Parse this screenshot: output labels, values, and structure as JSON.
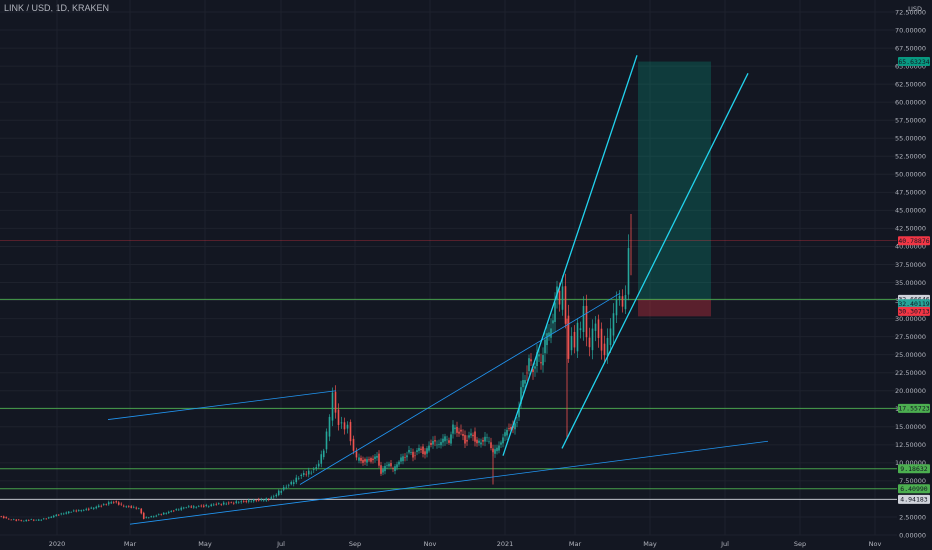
{
  "header": {
    "title": "LINK / USD, 1D, KRAKEN"
  },
  "chart_data": {
    "type": "candlestick",
    "symbol": "LINK / USD",
    "interval": "1D",
    "exchange": "KRAKEN",
    "currency_label": "USD",
    "y_axis": {
      "range": [
        0,
        72.5
      ],
      "ticks": [
        "72.50000",
        "70.00000",
        "67.50000",
        "65.00000",
        "62.50000",
        "60.00000",
        "57.50000",
        "55.00000",
        "52.50000",
        "50.00000",
        "47.50000",
        "45.00000",
        "42.50000",
        "40.00000",
        "37.50000",
        "35.00000",
        "32.50000",
        "30.00000",
        "27.50000",
        "25.00000",
        "22.50000",
        "20.00000",
        "17.50000",
        "15.00000",
        "12.50000",
        "10.00000",
        "7.50000",
        "5.00000",
        "2.50000",
        "0.00000"
      ]
    },
    "x_axis": {
      "ticks": [
        "2020",
        "Mar",
        "May",
        "Jul",
        "Sep",
        "Nov",
        "2021",
        "Mar",
        "May",
        "Jul",
        "Sep",
        "Nov"
      ]
    },
    "price_badges": [
      {
        "value": "65.63234",
        "y": 65.63,
        "color": "#089981"
      },
      {
        "value": "40.78876",
        "y": 40.79,
        "color": "#f23645"
      },
      {
        "value": "32.66646",
        "y": 32.67,
        "color": "#d1d4dc"
      },
      {
        "value": "32.40119",
        "y": 32.05,
        "color": "#26a69a"
      },
      {
        "value": "30.30713",
        "y": 31.0,
        "color": "#f23645"
      },
      {
        "value": "17.55723",
        "y": 17.56,
        "color": "#4caf50"
      },
      {
        "value": "9.18632",
        "y": 9.19,
        "color": "#4caf50"
      },
      {
        "value": "6.40990",
        "y": 6.41,
        "color": "#4caf50"
      },
      {
        "value": "4.94183",
        "y": 4.94,
        "color": "#d1d4dc"
      }
    ],
    "horizontal_levels": [
      {
        "y": 32.67,
        "color": "#4caf50"
      },
      {
        "y": 17.56,
        "color": "#4caf50"
      },
      {
        "y": 9.19,
        "color": "#4caf50"
      },
      {
        "y": 6.41,
        "color": "#4caf50"
      },
      {
        "y": 4.94,
        "color": "#d1d4dc"
      },
      {
        "y": 40.79,
        "color": "#f23645"
      }
    ],
    "price_path": [
      [
        0,
        2.6
      ],
      [
        5,
        2.4
      ],
      [
        10,
        2.2
      ],
      [
        15,
        2.1
      ],
      [
        20,
        2.0
      ],
      [
        25,
        2.0
      ],
      [
        30,
        2.1
      ],
      [
        35,
        2.05
      ],
      [
        40,
        2.1
      ],
      [
        45,
        2.2
      ],
      [
        50,
        2.4
      ],
      [
        55,
        2.7
      ],
      [
        60,
        2.8
      ],
      [
        65,
        3.0
      ],
      [
        70,
        3.2
      ],
      [
        75,
        3.3
      ],
      [
        80,
        3.4
      ],
      [
        85,
        3.5
      ],
      [
        90,
        3.6
      ],
      [
        95,
        3.8
      ],
      [
        100,
        4.0
      ],
      [
        105,
        4.2
      ],
      [
        110,
        4.5
      ],
      [
        115,
        4.6
      ],
      [
        120,
        4.3
      ],
      [
        125,
        4.0
      ],
      [
        130,
        3.9
      ],
      [
        135,
        3.8
      ],
      [
        140,
        3.7
      ],
      [
        145,
        2.3
      ],
      [
        150,
        2.5
      ],
      [
        155,
        2.6
      ],
      [
        160,
        2.8
      ],
      [
        165,
        3.0
      ],
      [
        170,
        3.2
      ],
      [
        175,
        3.4
      ],
      [
        180,
        3.6
      ],
      [
        185,
        3.8
      ],
      [
        190,
        3.9
      ],
      [
        195,
        3.9
      ],
      [
        200,
        4.0
      ],
      [
        205,
        4.0
      ],
      [
        210,
        4.1
      ],
      [
        215,
        4.2
      ],
      [
        220,
        4.3
      ],
      [
        225,
        4.4
      ],
      [
        230,
        4.4
      ],
      [
        235,
        4.5
      ],
      [
        240,
        4.6
      ],
      [
        245,
        4.6
      ],
      [
        250,
        4.7
      ],
      [
        255,
        4.8
      ],
      [
        260,
        4.8
      ],
      [
        265,
        4.9
      ],
      [
        270,
        5.0
      ],
      [
        275,
        5.3
      ],
      [
        280,
        6.0
      ],
      [
        285,
        6.5
      ],
      [
        290,
        7.0
      ],
      [
        295,
        7.5
      ],
      [
        300,
        8.0
      ],
      [
        305,
        8.5
      ],
      [
        310,
        8.7
      ],
      [
        315,
        9.0
      ],
      [
        320,
        10.0
      ],
      [
        325,
        12.0
      ],
      [
        328,
        14.0
      ],
      [
        331,
        16.0
      ],
      [
        334,
        19.5
      ],
      [
        337,
        17.0
      ],
      [
        340,
        15.5
      ],
      [
        343,
        16.0
      ],
      [
        346,
        15.0
      ],
      [
        349,
        15.5
      ],
      [
        352,
        13.0
      ],
      [
        355,
        11.5
      ],
      [
        358,
        10.5
      ],
      [
        362,
        10.5
      ],
      [
        366,
        10.0
      ],
      [
        370,
        10.5
      ],
      [
        374,
        10.3
      ],
      [
        378,
        11.0
      ],
      [
        382,
        8.5
      ],
      [
        386,
        9.5
      ],
      [
        390,
        10.0
      ],
      [
        394,
        9.0
      ],
      [
        398,
        10.0
      ],
      [
        402,
        10.5
      ],
      [
        406,
        11.0
      ],
      [
        410,
        11.5
      ],
      [
        414,
        11.0
      ],
      [
        418,
        11.5
      ],
      [
        422,
        12.0
      ],
      [
        426,
        11.0
      ],
      [
        430,
        12.5
      ],
      [
        434,
        13.0
      ],
      [
        438,
        12.5
      ],
      [
        442,
        13.0
      ],
      [
        446,
        13.5
      ],
      [
        450,
        13.0
      ],
      [
        454,
        15.0
      ],
      [
        458,
        14.5
      ],
      [
        462,
        14.0
      ],
      [
        466,
        13.0
      ],
      [
        470,
        13.5
      ],
      [
        474,
        14.0
      ],
      [
        478,
        12.5
      ],
      [
        482,
        13.0
      ],
      [
        486,
        13.5
      ],
      [
        490,
        13.0
      ],
      [
        494,
        11.5
      ],
      [
        498,
        12.0
      ],
      [
        502,
        13.0
      ],
      [
        506,
        14.0
      ],
      [
        510,
        15.0
      ],
      [
        514,
        14.5
      ],
      [
        518,
        16.0
      ],
      [
        522,
        20.0
      ],
      [
        526,
        22.0
      ],
      [
        530,
        24.0
      ],
      [
        534,
        23.0
      ],
      [
        538,
        25.0
      ],
      [
        542,
        24.0
      ],
      [
        546,
        27.0
      ],
      [
        550,
        28.0
      ],
      [
        554,
        30.0
      ],
      [
        558,
        34.0
      ],
      [
        561,
        32.0
      ],
      [
        564,
        35.0
      ],
      [
        567,
        30.0
      ],
      [
        570,
        25.0
      ],
      [
        573,
        28.0
      ],
      [
        576,
        26.0
      ],
      [
        579,
        29.0
      ],
      [
        582,
        28.0
      ],
      [
        585,
        31.0
      ],
      [
        588,
        27.0
      ],
      [
        591,
        26.0
      ],
      [
        594,
        29.0
      ],
      [
        597,
        30.0
      ],
      [
        600,
        28.0
      ],
      [
        603,
        26.0
      ],
      [
        606,
        25.0
      ],
      [
        609,
        27.0
      ],
      [
        612,
        28.0
      ],
      [
        615,
        30.0
      ],
      [
        618,
        32.0
      ],
      [
        621,
        33.0
      ],
      [
        624,
        32.0
      ],
      [
        627,
        34.0
      ],
      [
        630,
        40.79
      ]
    ],
    "drawings": {
      "trendlines": [
        {
          "from": [
            108,
            16.0
          ],
          "to": [
            336,
            20.0
          ],
          "color": "#2196f3"
        },
        {
          "from": [
            130,
            1.5
          ],
          "to": [
            768,
            13.0
          ],
          "color": "#2196f3"
        },
        {
          "from": [
            300,
            7.0
          ],
          "to": [
            620,
            33.5
          ],
          "color": "#2196f3"
        },
        {
          "from": [
            503,
            11.0
          ],
          "to": [
            637,
            66.5
          ],
          "color": "#22d3ee"
        },
        {
          "from": [
            562,
            12.0
          ],
          "to": [
            748,
            64.0
          ],
          "color": "#22d3ee"
        }
      ],
      "long_position": {
        "entry": 32.67,
        "target": 65.63,
        "stop": 30.31,
        "x_from": 638,
        "x_to": 711
      }
    }
  }
}
